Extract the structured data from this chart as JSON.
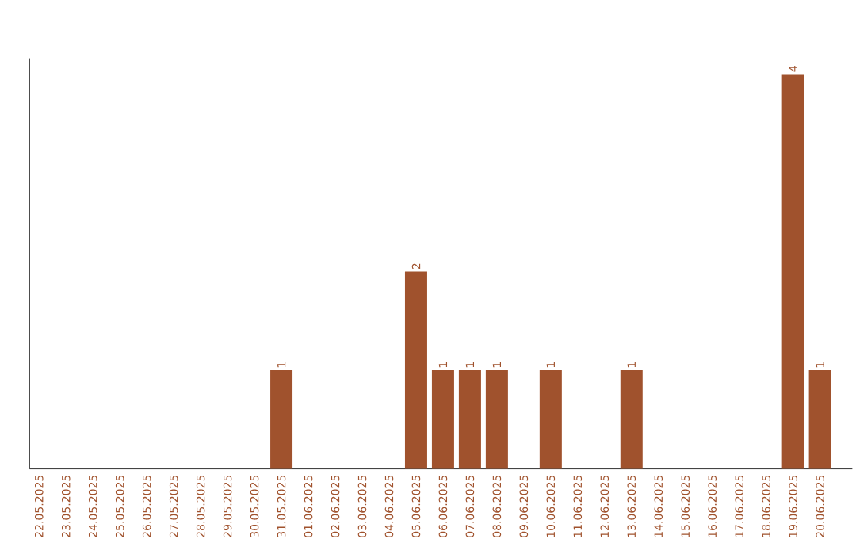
{
  "chart_data": {
    "type": "bar",
    "categories": [
      "22.05.2025",
      "23.05.2025",
      "24.05.2025",
      "25.05.2025",
      "26.05.2025",
      "27.05.2025",
      "28.05.2025",
      "29.05.2025",
      "30.05.2025",
      "31.05.2025",
      "01.06.2025",
      "02.06.2025",
      "03.06.2025",
      "04.06.2025",
      "05.06.2025",
      "06.06.2025",
      "07.06.2025",
      "08.06.2025",
      "09.06.2025",
      "10.06.2025",
      "11.06.2025",
      "12.06.2025",
      "13.06.2025",
      "14.06.2025",
      "15.06.2025",
      "16.06.2025",
      "17.06.2025",
      "18.06.2025",
      "19.06.2025",
      "20.06.2025"
    ],
    "values": [
      0,
      0,
      0,
      0,
      0,
      0,
      0,
      0,
      0,
      1,
      0,
      0,
      0,
      0,
      2,
      1,
      1,
      1,
      0,
      1,
      0,
      0,
      1,
      0,
      0,
      0,
      0,
      0,
      4,
      1
    ],
    "value_labels": [
      null,
      null,
      null,
      null,
      null,
      null,
      null,
      null,
      null,
      "1",
      null,
      null,
      null,
      null,
      "2",
      "1",
      "1",
      "1",
      null,
      "1",
      null,
      null,
      "1",
      null,
      null,
      null,
      null,
      null,
      "4",
      "1"
    ],
    "color": "#a0522d",
    "tick_labels": "x",
    "grid": false
  }
}
